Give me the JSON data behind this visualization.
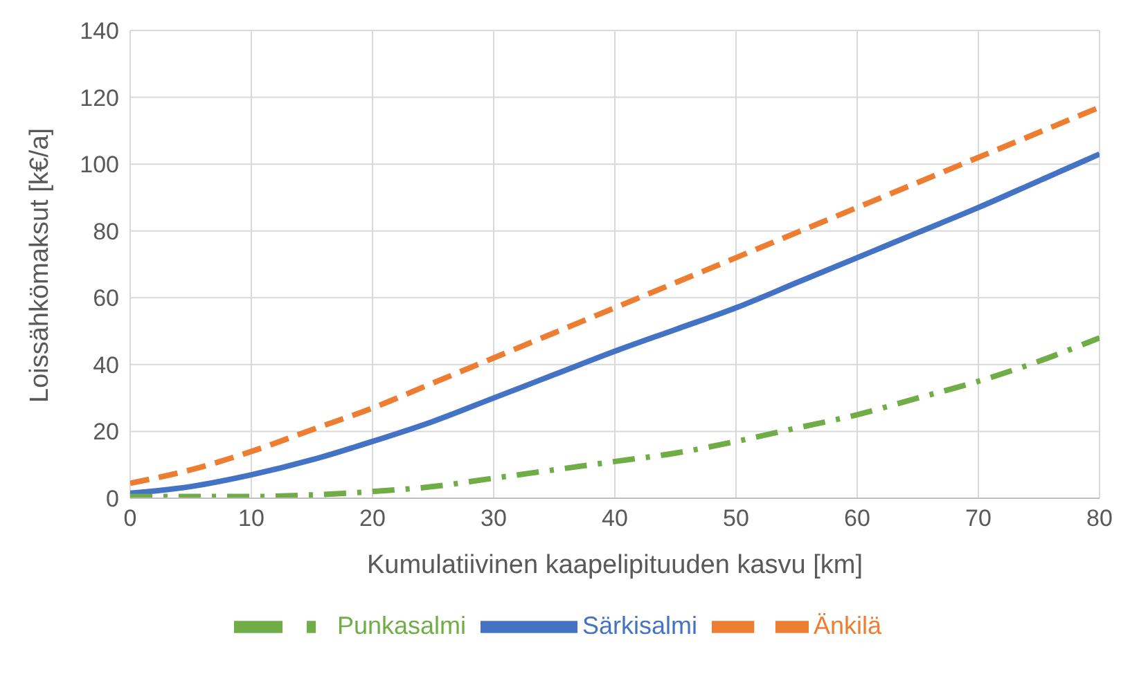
{
  "chart_data": {
    "type": "line",
    "xlabel": "Kumulatiivinen kaapelipituuden kasvu [km]",
    "ylabel": "Loissähkömaksut [k€/a]",
    "x": [
      0,
      5,
      10,
      15,
      20,
      25,
      30,
      35,
      40,
      45,
      50,
      55,
      60,
      65,
      70,
      75,
      80
    ],
    "series": [
      {
        "name": "Särkisalmi",
        "color": "#4472c4",
        "line_style": "solid",
        "values": [
          1.5,
          3.5,
          7,
          11.5,
          17,
          23,
          30,
          37,
          44,
          50.5,
          57,
          64.5,
          72,
          79.5,
          87,
          95,
          103
        ]
      },
      {
        "name": "Änkilä",
        "color": "#ed7d31",
        "line_style": "dashed",
        "values": [
          4.5,
          8.5,
          14,
          20.5,
          27,
          34.5,
          42,
          49.5,
          57,
          64.5,
          72,
          79.5,
          87,
          94.5,
          102,
          109.5,
          117
        ]
      },
      {
        "name": "Punkasalmi",
        "color": "#70ad47",
        "line_style": "dashdot",
        "values": [
          0.5,
          0.5,
          0.5,
          1,
          2,
          3.5,
          6,
          8.5,
          11,
          13.5,
          17,
          21,
          25,
          30,
          35,
          41,
          48
        ]
      }
    ],
    "xlim": [
      0,
      80
    ],
    "xticks": [
      0,
      10,
      20,
      30,
      40,
      50,
      60,
      70,
      80
    ],
    "ylim": [
      0,
      140
    ],
    "yticks": [
      0,
      20,
      40,
      60,
      80,
      100,
      120,
      140
    ],
    "grid": true,
    "legend": "bottom",
    "marker": "none"
  }
}
